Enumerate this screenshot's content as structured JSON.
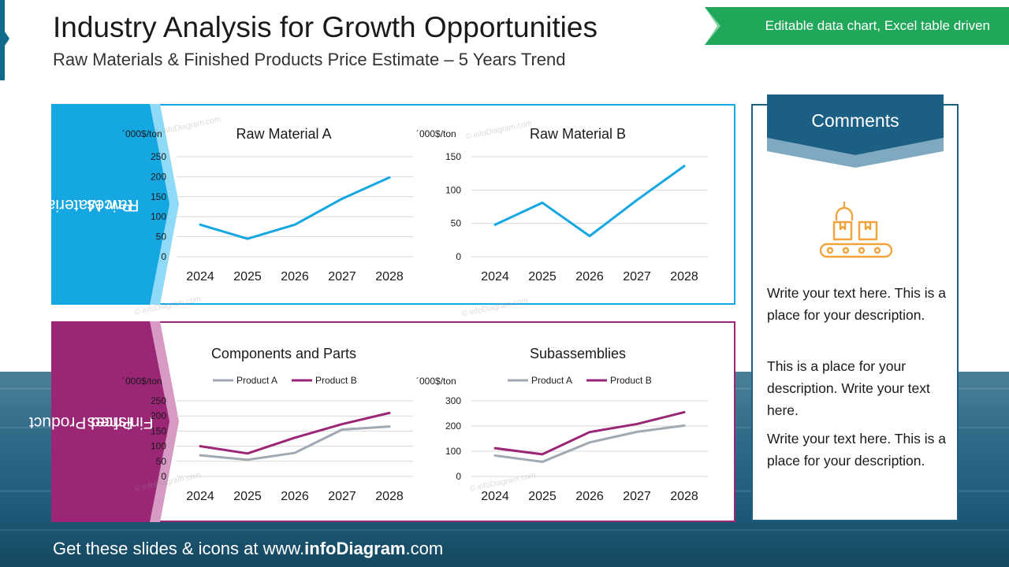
{
  "header": {
    "title": "Industry Analysis for Growth Opportunities",
    "subtitle": "Raw Materials & Finished Products Price Estimate – 5 Years Trend",
    "banner": "Editable data chart, Excel table driven"
  },
  "sections": {
    "raw_label_1": "Raw Material",
    "raw_label_2": "Prices",
    "finished_label_1": "Finished Product",
    "finished_label_2": "Prices"
  },
  "colors": {
    "raw_accent": "#15a7e2",
    "finished_accent": "#9b2676",
    "product_a": "#a1a9b3",
    "product_b": "#9b2676",
    "comments_header": "#1b5f84",
    "banner": "#21a75a",
    "icon": "#f0a43a"
  },
  "chart_data": [
    {
      "type": "line",
      "title": "Raw Material A",
      "unit": "´000$/ton",
      "categories": [
        "2024",
        "2025",
        "2026",
        "2027",
        "2028"
      ],
      "series": [
        {
          "values": [
            80,
            45,
            80,
            145,
            198
          ]
        }
      ],
      "ylim": [
        0,
        250
      ],
      "yticks": [
        0,
        50,
        100,
        150,
        200,
        250
      ],
      "grid": true,
      "legend": "none"
    },
    {
      "type": "line",
      "title": "Raw Material B",
      "unit": "´000$/ton",
      "categories": [
        "2024",
        "2025",
        "2026",
        "2027",
        "2028"
      ],
      "series": [
        {
          "values": [
            48,
            81,
            31,
            85,
            136
          ]
        }
      ],
      "ylim": [
        0,
        150
      ],
      "yticks": [
        0,
        50,
        100,
        150
      ],
      "grid": true,
      "legend": "none"
    },
    {
      "type": "line",
      "title": "Components and Parts",
      "unit": "´000$/ton",
      "categories": [
        "2024",
        "2025",
        "2026",
        "2027",
        "2028"
      ],
      "series": [
        {
          "name": "Product A",
          "values": [
            70,
            55,
            78,
            155,
            165
          ]
        },
        {
          "name": "Product B",
          "values": [
            100,
            76,
            128,
            173,
            210
          ]
        }
      ],
      "ylim": [
        0,
        250
      ],
      "yticks": [
        0,
        50,
        100,
        150,
        200,
        250
      ],
      "grid": true,
      "legend": "top"
    },
    {
      "type": "line",
      "title": "Subassemblies",
      "unit": "´000$/ton",
      "categories": [
        "2024",
        "2025",
        "2026",
        "2027",
        "2028"
      ],
      "series": [
        {
          "name": "Product A",
          "values": [
            83,
            58,
            135,
            177,
            202
          ]
        },
        {
          "name": "Product B",
          "values": [
            112,
            88,
            176,
            208,
            255
          ]
        }
      ],
      "ylim": [
        0,
        300
      ],
      "yticks": [
        0,
        100,
        200,
        300
      ],
      "grid": true,
      "legend": "top"
    }
  ],
  "comments": {
    "title": "Comments",
    "icon": "conveyor-belt-icon",
    "p1": "Write your text here. This is a place for your description.",
    "p2": "This is a place for your description. Write your text here.",
    "p3": "Write your text here. This is a place for your description."
  },
  "footer": {
    "prefix": "Get these slides & icons at www.",
    "brand": "infoDiagram",
    "suffix": ".com"
  },
  "watermark": "© infoDiagram.com"
}
